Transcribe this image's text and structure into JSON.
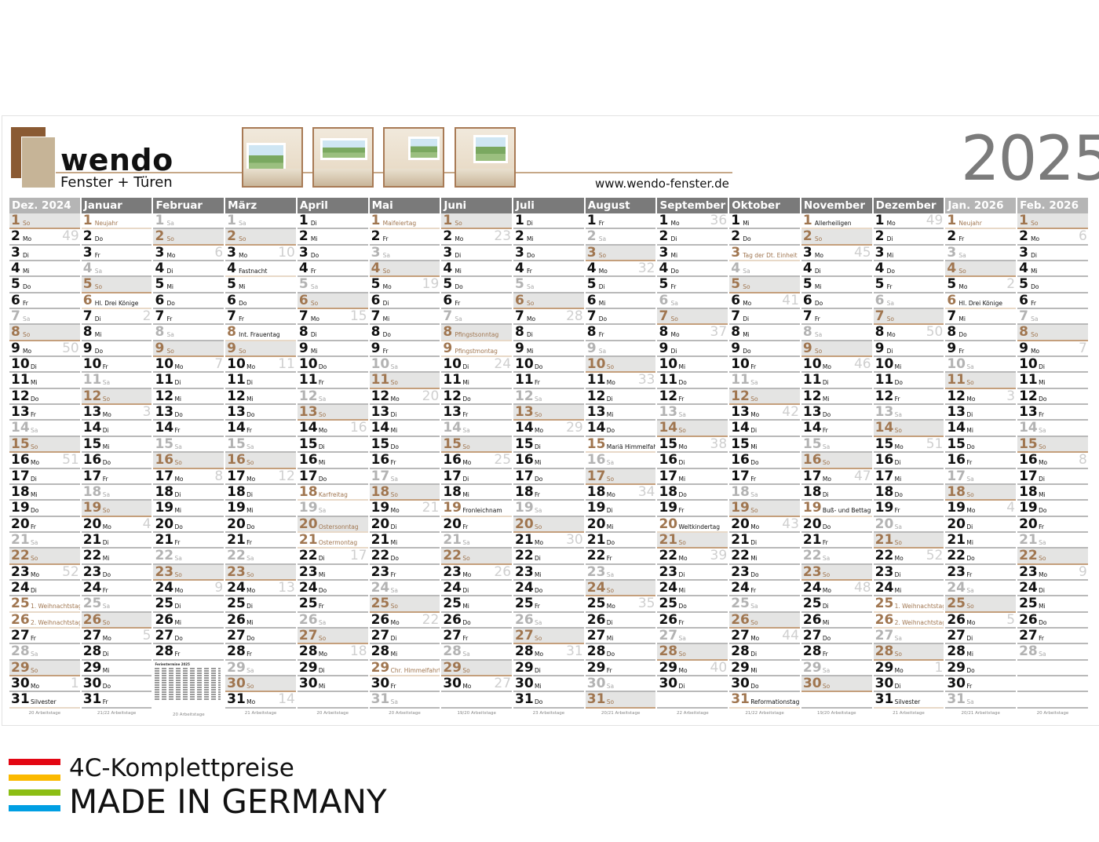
{
  "header": {
    "brand": "wendo",
    "tagline": "Fenster + Türen",
    "url": "www.wendo-fenster.de",
    "year": "2025",
    "photos": [
      "window-photo-1",
      "window-photo-2",
      "window-photo-3",
      "window-photo-4"
    ]
  },
  "colors": {
    "header_dark": "#7a7a7a",
    "header_light": "#b5b5b5",
    "brown": "#a07650",
    "logo_dark": "#8a5a33",
    "logo_light": "#c6b497",
    "sunday_bg": "#e4e4e3"
  },
  "months": [
    {
      "name": "Dez. 2024",
      "light": true,
      "wd": "So Mo Di Mi Do Fr Sa So Mo Di Mi Do Fr Sa So Mo Di Mi Do Fr Sa So Mo Di Mi Do Fr Sa So Mo Di",
      "holidays": {
        "25": [
          "1. Weihnachtstag",
          "n"
        ],
        "26": [
          "2. Weihnachtstag",
          "n"
        ],
        "31": [
          "Silvester",
          "s"
        ]
      },
      "weeks": {
        "2": "49",
        "9": "50",
        "16": "51",
        "23": "52",
        "30": "1"
      },
      "workdays": "20 Arbeitstage"
    },
    {
      "name": "Januar",
      "wd": "Mi Do Fr Sa So Mo Di Mi Do Fr Sa So Mo Di Mi Do Fr Sa So Mo Di Mi Do Fr Sa So Mo Di Mi Do Fr",
      "holidays": {
        "1": [
          "Neujahr",
          "n"
        ],
        "6": [
          "Hl. Drei Könige",
          "r"
        ]
      },
      "weeks": {
        "7": "2",
        "13": "3",
        "20": "4",
        "27": "5"
      },
      "workdays": "21/22 Arbeitstage"
    },
    {
      "name": "Februar",
      "wd": "Sa So Mo Di Mi Do Fr Sa So Mo Di Mi Do Fr Sa So Mo Di Mi Do Fr Sa So Mo Di Mi Do Fr",
      "holidays": {},
      "weeks": {
        "3": "6",
        "10": "7",
        "17": "8",
        "24": "9"
      },
      "workdays": "20 Arbeitstage",
      "insert": "Ferientermine 2025"
    },
    {
      "name": "März",
      "wd": "Sa So Mo Di Mi Do Fr Sa So Mo Di Mi Do Fr Sa So Mo Di Mi Do Fr Sa So Mo Di Mi Do Fr Sa So Mo",
      "holidays": {
        "4": [
          "Fastnacht",
          "s"
        ],
        "8": [
          "Int. Frauentag",
          "r"
        ]
      },
      "weeks": {
        "3": "10",
        "10": "11",
        "17": "12",
        "24": "13",
        "31": "14"
      },
      "workdays": "21 Arbeitstage"
    },
    {
      "name": "April",
      "wd": "Di Mi Do Fr Sa So Mo Di Mi Do Fr Sa So Mo Di Mi Do Fr Sa So Mo Di Mi Do Fr Sa So Mo Di Mi",
      "holidays": {
        "18": [
          "Karfreitag",
          "n"
        ],
        "20": [
          "Ostersonntag",
          "n"
        ],
        "21": [
          "Ostermontag",
          "n"
        ]
      },
      "weeks": {
        "7": "15",
        "14": "16",
        "22": "17",
        "28": "18"
      },
      "workdays": "20 Arbeitstage"
    },
    {
      "name": "Mai",
      "wd": "Do Fr Sa So Mo Di Mi Do Fr Sa So Mo Di Mi Do Fr Sa So Mo Di Mi Do Fr Sa So Mo Di Mi Do Fr Sa",
      "holidays": {
        "1": [
          "Maifeiertag",
          "n"
        ],
        "29": [
          "Chr. Himmelfahrt",
          "n"
        ]
      },
      "weeks": {
        "5": "19",
        "12": "20",
        "19": "21",
        "26": "22"
      },
      "workdays": "20 Arbeitstage"
    },
    {
      "name": "Juni",
      "wd": "So Mo Di Mi Do Fr Sa So Mo Di Mi Do Fr Sa So Mo Di Mi Do Fr Sa So Mo Di Mi Do Fr Sa So Mo",
      "holidays": {
        "8": [
          "Pfingstsonntag",
          "n"
        ],
        "9": [
          "Pfingstmontag",
          "n"
        ],
        "19": [
          "Fronleichnam",
          "r"
        ]
      },
      "weeks": {
        "2": "23",
        "10": "24",
        "16": "25",
        "23": "26",
        "30": "27"
      },
      "workdays": "19/20 Arbeitstage"
    },
    {
      "name": "Juli",
      "wd": "Di Mi Do Fr Sa So Mo Di Mi Do Fr Sa So Mo Di Mi Do Fr Sa So Mo Di Mi Do Fr Sa So Mo Di Mi Do",
      "holidays": {},
      "weeks": {
        "7": "28",
        "14": "29",
        "21": "30",
        "28": "31"
      },
      "workdays": "23 Arbeitstage"
    },
    {
      "name": "August",
      "wd": "Fr Sa So Mo Di Mi Do Fr Sa So Mo Di Mi Do Fr Sa So Mo Di Mi Do Fr Sa So Mo Di Mi Do Fr Sa So",
      "holidays": {
        "15": [
          "Mariä Himmelfahrt",
          "r"
        ]
      },
      "weeks": {
        "4": "32",
        "11": "33",
        "18": "34",
        "25": "35"
      },
      "workdays": "20/21 Arbeitstage"
    },
    {
      "name": "September",
      "wd": "Mo Di Mi Do Fr Sa So Mo Di Mi Do Fr Sa So Mo Di Mi Do Fr Sa So Mo Di Mi Do Fr Sa So Mo Di",
      "holidays": {
        "20": [
          "Weltkindertag",
          "r"
        ]
      },
      "weeks": {
        "1": "36",
        "8": "37",
        "15": "38",
        "22": "39",
        "29": "40"
      },
      "workdays": "22 Arbeitstage"
    },
    {
      "name": "Oktober",
      "wd": "Mi Do Fr Sa So Mo Di Mi Do Fr Sa So Mo Di Mi Do Fr Sa So Mo Di Mi Do Fr Sa So Mo Di Mi Do Fr",
      "holidays": {
        "3": [
          "Tag der Dt. Einheit",
          "n"
        ],
        "31": [
          "Reformationstag",
          "r"
        ]
      },
      "weeks": {
        "6": "41",
        "13": "42",
        "20": "43",
        "27": "44"
      },
      "workdays": "21/22 Arbeitstage"
    },
    {
      "name": "November",
      "wd": "Sa So Mo Di Mi Do Fr Sa So Mo Di Mi Do Fr Sa So Mo Di Mi Do Fr Sa So Mo Di Mi Do Fr Sa So",
      "holidays": {
        "1": [
          "Allerheiligen",
          "r"
        ],
        "19": [
          "Buß- und Bettag",
          "r"
        ]
      },
      "weeks": {
        "3": "45",
        "10": "46",
        "17": "47",
        "24": "48"
      },
      "workdays": "19/20 Arbeitstage"
    },
    {
      "name": "Dezember",
      "wd": "Mo Di Mi Do Fr Sa So Mo Di Mi Do Fr Sa So Mo Di Mi Do Fr Sa So Mo Di Mi Do Fr Sa So Mo Di Mi",
      "holidays": {
        "25": [
          "1. Weihnachtstag",
          "n"
        ],
        "26": [
          "2. Weihnachtstag",
          "n"
        ],
        "31": [
          "Silvester",
          "s"
        ]
      },
      "weeks": {
        "1": "49",
        "8": "50",
        "15": "51",
        "22": "52",
        "29": "1"
      },
      "workdays": "21 Arbeitstage"
    },
    {
      "name": "Jan. 2026",
      "light": true,
      "wd": "Do Fr Sa So Mo Di Mi Do Fr Sa So Mo Di Mi Do Fr Sa So Mo Di Mi Do Fr Sa So Mo Di Mi Do Fr Sa",
      "holidays": {
        "1": [
          "Neujahr",
          "n"
        ],
        "6": [
          "Hl. Drei Könige",
          "r"
        ]
      },
      "weeks": {
        "5": "2",
        "12": "3",
        "19": "4",
        "26": "5"
      },
      "workdays": "20/21 Arbeitstage"
    },
    {
      "name": "Feb. 2026",
      "light": true,
      "wd": "So Mo Di Mi Do Fr Sa So Mo Di Mi Do Fr Sa So Mo Di Mi Do Fr Sa So Mo Di Mi Do Fr Sa",
      "holidays": {},
      "weeks": {
        "2": "6",
        "9": "7",
        "16": "8",
        "23": "9"
      },
      "workdays": "20 Arbeitstage"
    }
  ],
  "footer": {
    "line1": "4C-Komplettpreise",
    "line2": "MADE IN GERMANY",
    "bar_colors": [
      "#e30613",
      "#fbb900",
      "#8cbe14",
      "#009fe3"
    ]
  }
}
